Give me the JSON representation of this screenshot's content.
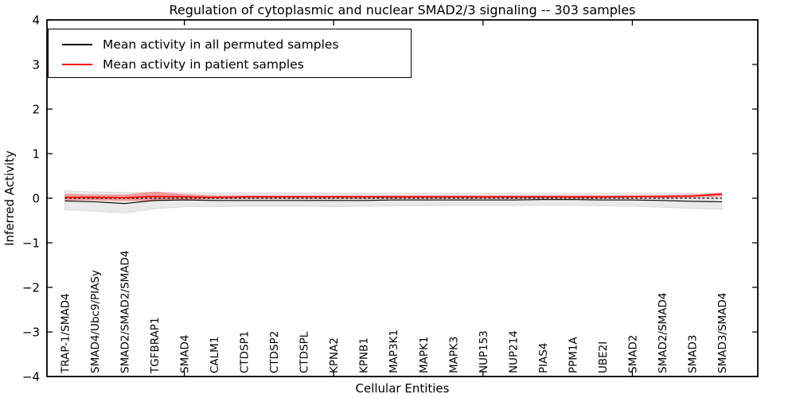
{
  "chart_data": {
    "type": "line",
    "title": "Regulation of cytoplasmic and nuclear SMAD2/3 signaling -- 303 samples",
    "xlabel": "Cellular Entities",
    "ylabel": "Inferred Activity",
    "ylim": [
      -4,
      4
    ],
    "yticks": [
      4,
      3,
      2,
      1,
      0,
      -1,
      -2,
      -3,
      -4
    ],
    "xlim": [
      0.4,
      24.2
    ],
    "xticks": [
      5,
      10,
      15,
      20
    ],
    "grid": false,
    "legend_position": "upper left",
    "background_color": "#ffffff",
    "categories": [
      "TRAP-1/SMAD4",
      "SMAD4/Ubc9/PIASy",
      "SMAD2/SMAD2/SMAD4",
      "TGFBRAP1",
      "SMAD4",
      "CALM1",
      "CTDSP1",
      "CTDSP2",
      "CTDSPL",
      "KPNA2",
      "KPNB1",
      "MAP3K1",
      "MAPK1",
      "MAPK3",
      "NUP153",
      "NUP214",
      "PIAS4",
      "PPM1A",
      "UBE2I",
      "SMAD2",
      "SMAD2/SMAD4",
      "SMAD3",
      "SMAD3/SMAD4"
    ],
    "x": [
      1,
      2,
      3,
      4,
      5,
      6,
      7,
      8,
      9,
      10,
      11,
      12,
      13,
      14,
      15,
      16,
      17,
      18,
      19,
      20,
      21,
      22,
      23
    ],
    "series": [
      {
        "name": "Mean activity in all permuted samples",
        "color": "#000000",
        "line_width": 1.1,
        "band_color": "#e9e9e9",
        "values": [
          -0.06,
          -0.08,
          -0.12,
          -0.05,
          -0.04,
          -0.05,
          -0.05,
          -0.05,
          -0.05,
          -0.05,
          -0.05,
          -0.04,
          -0.04,
          -0.04,
          -0.04,
          -0.04,
          -0.03,
          -0.03,
          -0.04,
          -0.04,
          -0.05,
          -0.07,
          -0.08
        ],
        "band_upper": [
          0.17,
          0.14,
          0.13,
          0.13,
          0.12,
          0.12,
          0.12,
          0.12,
          0.12,
          0.11,
          0.11,
          0.11,
          0.11,
          0.11,
          0.11,
          0.11,
          0.11,
          0.11,
          0.11,
          0.11,
          0.11,
          0.1,
          0.1
        ],
        "band_lower": [
          -0.26,
          -0.29,
          -0.33,
          -0.24,
          -0.19,
          -0.19,
          -0.18,
          -0.18,
          -0.18,
          -0.19,
          -0.18,
          -0.17,
          -0.17,
          -0.16,
          -0.16,
          -0.16,
          -0.16,
          -0.16,
          -0.17,
          -0.18,
          -0.2,
          -0.23,
          -0.25
        ]
      },
      {
        "name": "Mean activity in patient samples",
        "color": "#ff0000",
        "line_width": 1.5,
        "band_color": "#ff000055",
        "values": [
          0.02,
          0.02,
          0.01,
          0.04,
          0.03,
          0.02,
          0.03,
          0.03,
          0.03,
          0.03,
          0.03,
          0.03,
          0.03,
          0.03,
          0.03,
          0.03,
          0.03,
          0.03,
          0.03,
          0.04,
          0.04,
          0.05,
          0.09
        ],
        "band_upper": [
          0.1,
          0.08,
          0.08,
          0.15,
          0.09,
          0.06,
          0.06,
          0.06,
          0.06,
          0.06,
          0.06,
          0.06,
          0.06,
          0.06,
          0.06,
          0.06,
          0.06,
          0.06,
          0.06,
          0.06,
          0.07,
          0.08,
          0.13
        ],
        "band_lower": [
          -0.05,
          -0.05,
          -0.06,
          -0.07,
          -0.04,
          -0.02,
          -0.01,
          -0.01,
          -0.01,
          -0.01,
          -0.01,
          -0.01,
          -0.01,
          -0.01,
          -0.01,
          -0.01,
          -0.01,
          -0.01,
          -0.01,
          0.0,
          0.0,
          0.01,
          0.04
        ]
      }
    ],
    "zero_line": {
      "y": 0,
      "style": "dashed",
      "color": "#000000"
    }
  }
}
